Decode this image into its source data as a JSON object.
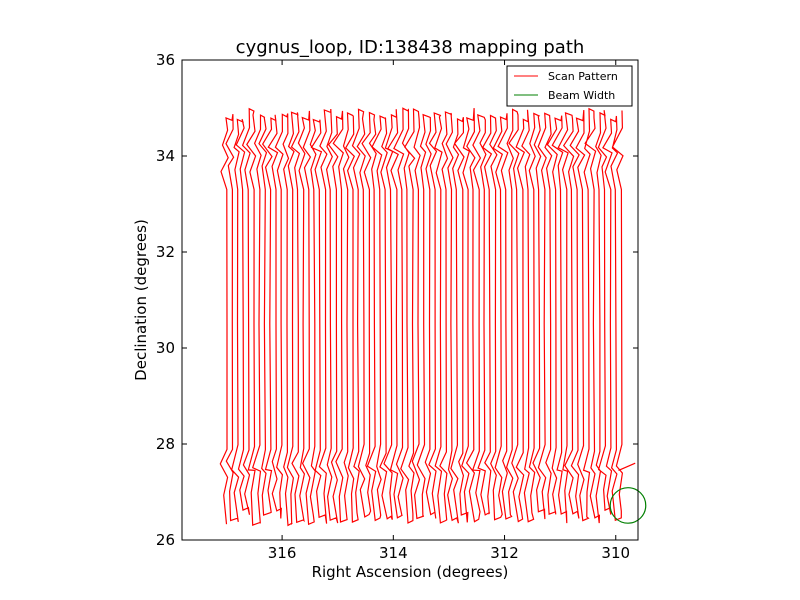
{
  "chart_data": {
    "type": "line",
    "title": "cygnus_loop, ID:138438 mapping path",
    "xlabel": "Right Ascension (degrees)",
    "ylabel": "Declination (degrees)",
    "xlim": [
      317.8,
      309.6
    ],
    "ylim": [
      26,
      36
    ],
    "x_inverted": true,
    "xticks": [
      316,
      314,
      312,
      310
    ],
    "yticks": [
      26,
      28,
      30,
      32,
      34,
      36
    ],
    "legend": {
      "placement": "top-right",
      "entries": [
        {
          "label": "Scan Pattern",
          "color": "#ff0000"
        },
        {
          "label": "Beam Width",
          "color": "#007f00"
        }
      ]
    },
    "series": [
      {
        "name": "Scan Pattern",
        "color": "#ff0000",
        "pattern": "raster",
        "ra_start": 317.0,
        "ra_end": 309.9,
        "num_scans": 73,
        "dec_low": 26.3,
        "dec_high": 35.0,
        "turn_band_low": [
          26.3,
          27.8
        ],
        "turn_band_high": [
          33.7,
          35.0
        ]
      },
      {
        "name": "Beam Width",
        "color": "#007f00",
        "shape": "circle",
        "center_ra": 309.78,
        "center_dec": 26.72,
        "radius_deg": 0.37
      }
    ]
  }
}
